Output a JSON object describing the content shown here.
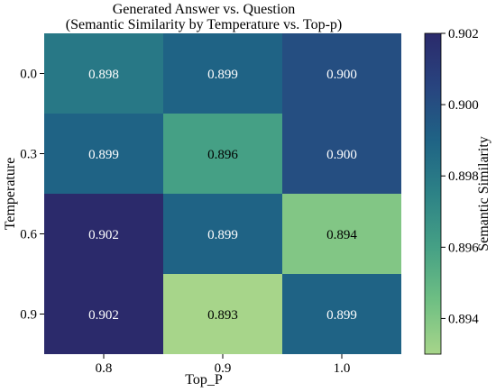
{
  "chart_data": {
    "type": "heatmap",
    "title": "Generated Answer vs. Question",
    "subtitle": "(Semantic Similarity by Temperature vs. Top-p)",
    "xlabel": "Top_P",
    "ylabel": "Temperature",
    "x_categories": [
      "0.8",
      "0.9",
      "1.0"
    ],
    "y_categories": [
      "0.0",
      "0.3",
      "0.6",
      "0.9"
    ],
    "values": [
      [
        0.898,
        0.899,
        0.9
      ],
      [
        0.899,
        0.896,
        0.9
      ],
      [
        0.902,
        0.899,
        0.894
      ],
      [
        0.902,
        0.893,
        0.899
      ]
    ],
    "cell_labels": [
      [
        "0.898",
        "0.899",
        "0.900"
      ],
      [
        "0.899",
        "0.896",
        "0.900"
      ],
      [
        "0.902",
        "0.899",
        "0.894"
      ],
      [
        "0.902",
        "0.893",
        "0.899"
      ]
    ],
    "colorbar": {
      "label": "Semantic Similarity",
      "range": [
        0.893,
        0.902
      ],
      "ticks": [
        0.894,
        0.896,
        0.898,
        0.9,
        0.902
      ],
      "tick_labels": [
        "0.894",
        "0.896",
        "0.898",
        "0.900",
        "0.902"
      ],
      "colormap_stops": [
        "#a7d58a",
        "#6fbf83",
        "#45a085",
        "#2d8286",
        "#1f6385",
        "#28447f",
        "#2b2a6b"
      ]
    },
    "label_color_dark": "#000000",
    "label_color_light": "#ffffff"
  }
}
